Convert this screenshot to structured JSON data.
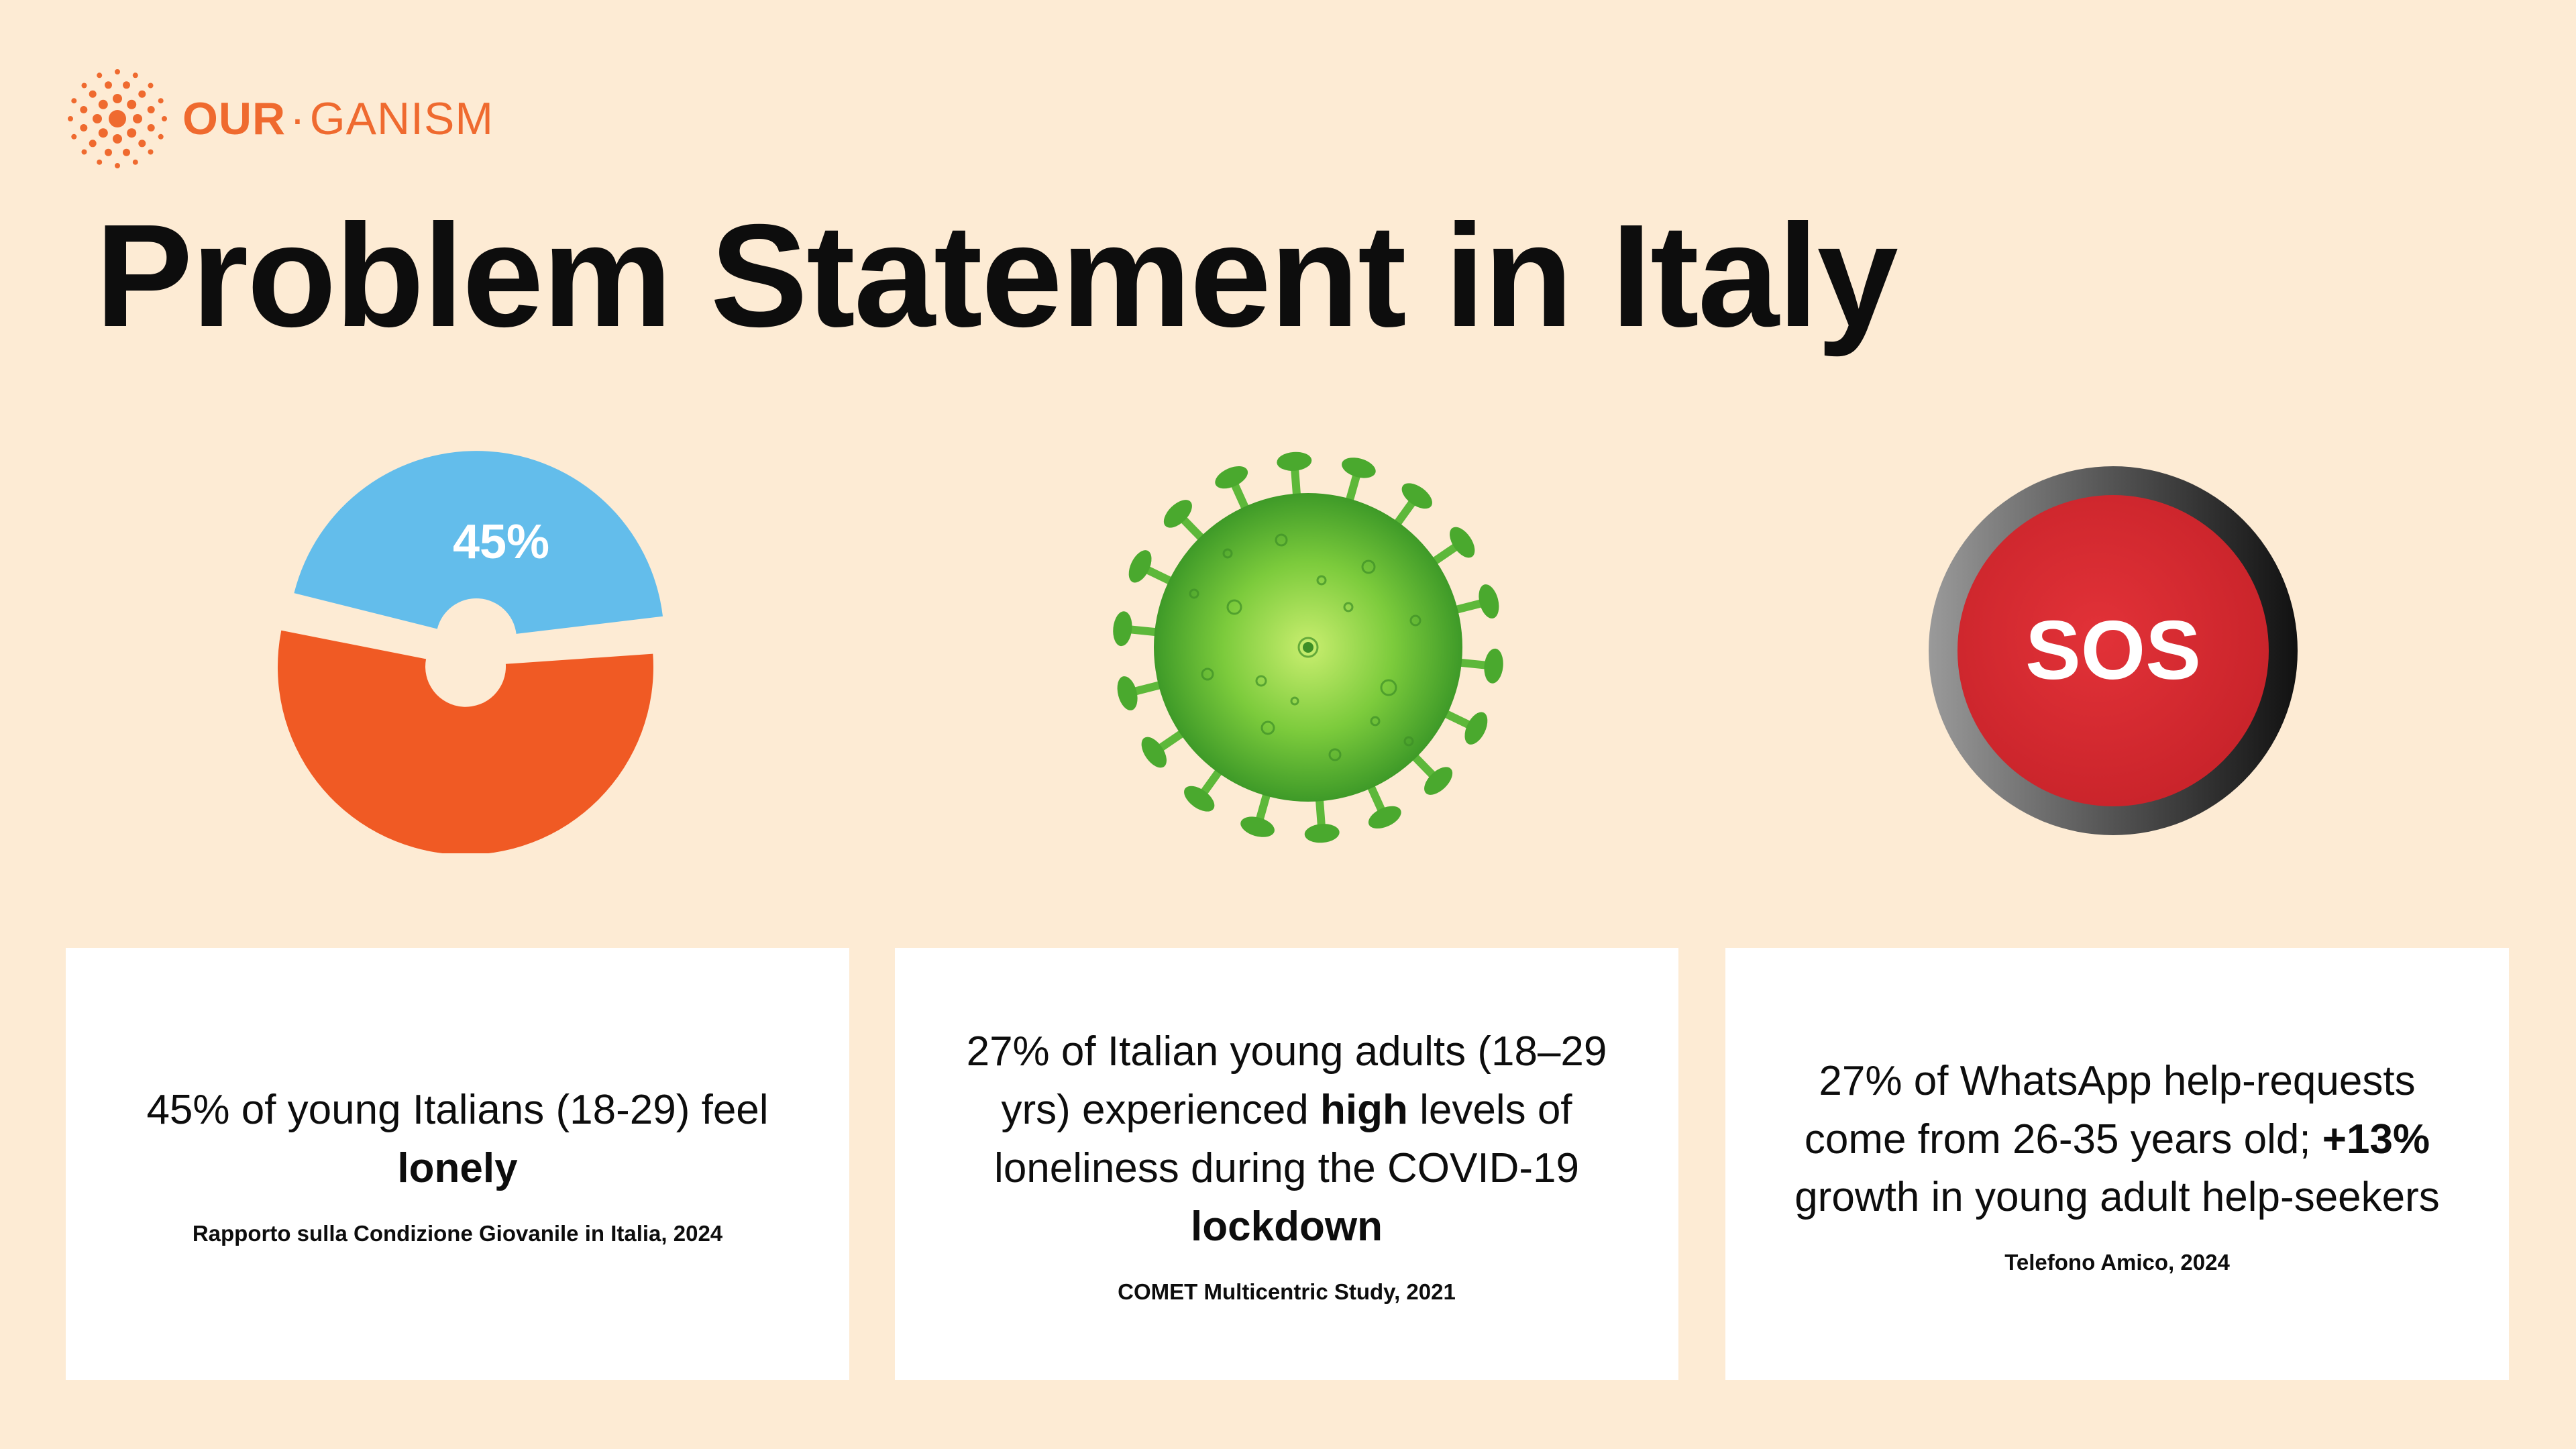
{
  "brand": {
    "name_bold": "OUR",
    "separator": "·",
    "name_rest": "GANISM",
    "accent_color": "#EF6A2F",
    "icon": "radial-dots-logo-icon"
  },
  "title": "Problem Statement in Italy",
  "donut": {
    "label": "45%",
    "value_percent": 45,
    "colors": {
      "highlight": "#63BDEB",
      "rest": "#F05A24"
    }
  },
  "virus": {
    "icon": "coronavirus-icon",
    "color": "#5DB83A"
  },
  "sos_button": {
    "label": "SOS",
    "color": "#D82A2F"
  },
  "cards": [
    {
      "stat_parts": [
        "45% of young Italians (18-29) feel ",
        "lonely"
      ],
      "source": "Rapporto sulla Condizione Giovanile in Italia, 2024"
    },
    {
      "stat_parts": [
        "27% of Italian young adults (18–29 yrs) experienced ",
        "high",
        " levels of loneliness during the COVID-19 ",
        "lockdown"
      ],
      "source": "COMET Multicentric Study, 2021"
    },
    {
      "stat_parts": [
        "27% of WhatsApp help-requests come from 26-35 years old; ",
        "+13%",
        " growth in young adult help-seekers"
      ],
      "source": "Telefono Amico, 2024"
    }
  ],
  "background_color": "#FDEBD4"
}
